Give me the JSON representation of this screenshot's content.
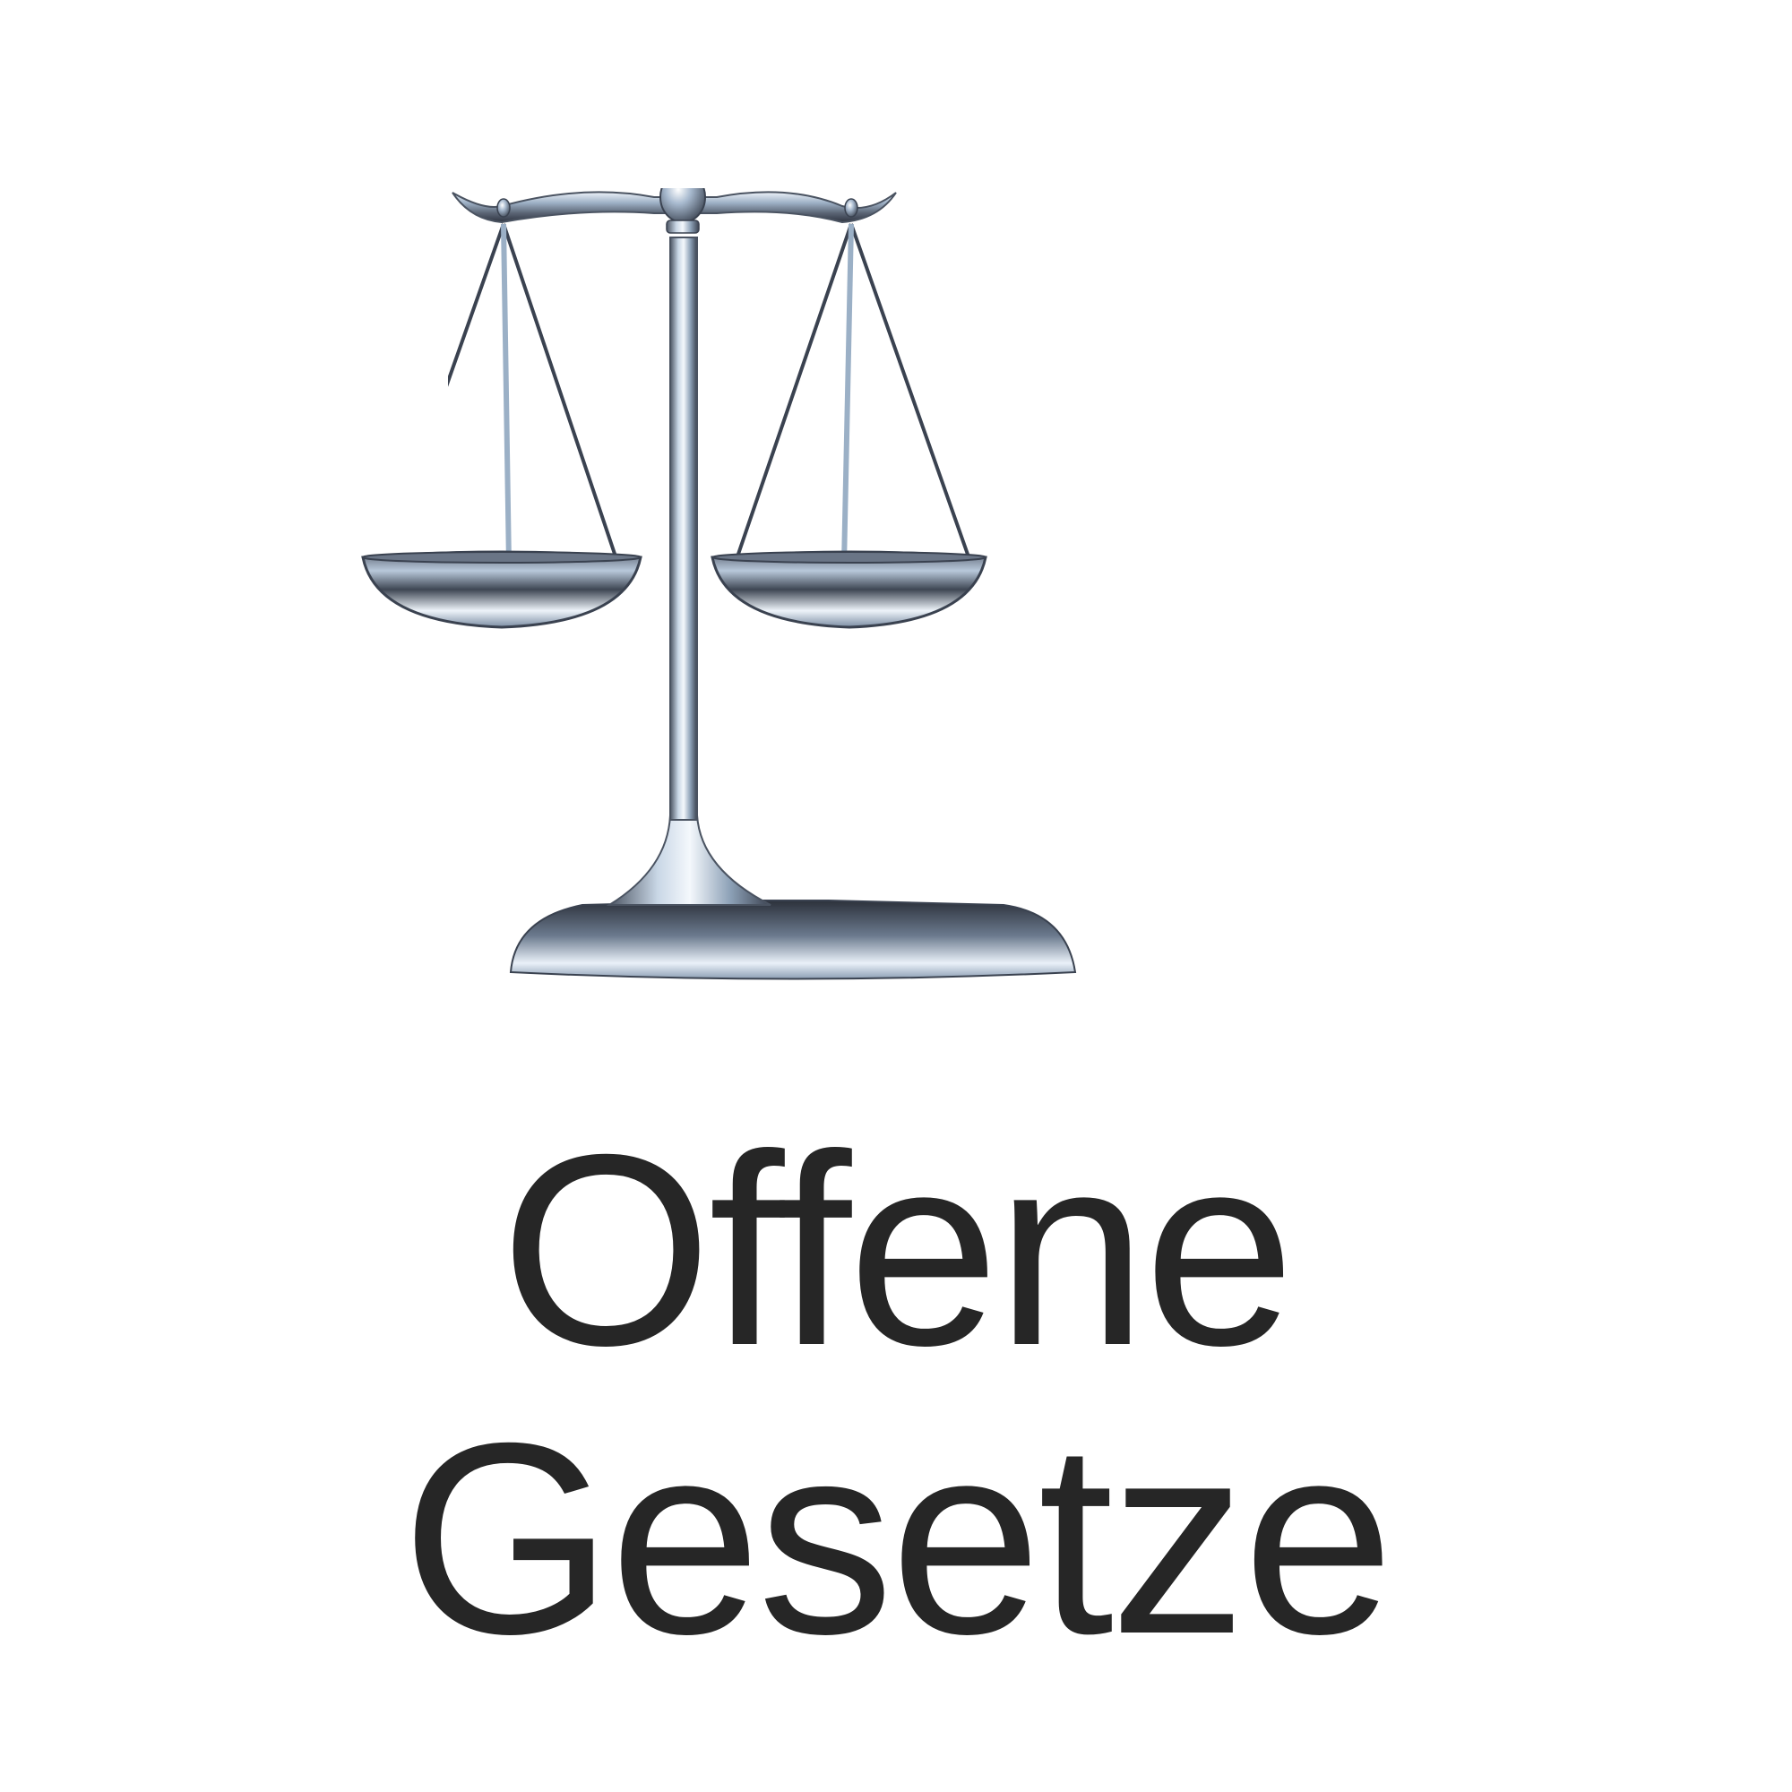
{
  "brand": {
    "line1": "Offene",
    "line2": "Gesetze",
    "text_color": "#262626",
    "logo_icon": "scales-of-justice-icon",
    "metal_colors": {
      "highlight": "#f2f6fb",
      "light": "#b7c7d9",
      "mid": "#7f95ad",
      "dark": "#3a4250"
    }
  }
}
